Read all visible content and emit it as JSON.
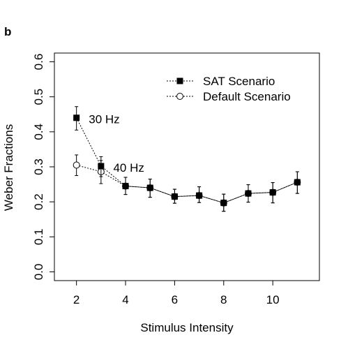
{
  "panel_label": "b",
  "chart_data": {
    "type": "line",
    "title": "",
    "xlabel": "Stimulus Intensity",
    "ylabel": "Weber Fractions",
    "xlim": [
      1.1,
      11.9
    ],
    "ylim": [
      -0.025,
      0.625
    ],
    "xticks": [
      2,
      4,
      6,
      8,
      10
    ],
    "yticks": [
      0.0,
      0.1,
      0.2,
      0.3,
      0.4,
      0.5,
      0.6
    ],
    "ytick_labels": [
      "0.0",
      "0.1",
      "0.2",
      "0.3",
      "0.4",
      "0.5",
      "0.6"
    ],
    "grid": false,
    "legend_position": "top-right",
    "series": [
      {
        "name": "SAT Scenario",
        "marker": "filled-square",
        "x": [
          2,
          3,
          4,
          5,
          6,
          7,
          8,
          9,
          10,
          11
        ],
        "y": [
          0.44,
          0.302,
          0.245,
          0.24,
          0.215,
          0.218,
          0.197,
          0.224,
          0.227,
          0.256
        ],
        "err_low": [
          0.405,
          0.272,
          0.221,
          0.213,
          0.196,
          0.198,
          0.173,
          0.199,
          0.197,
          0.224
        ],
        "err_high": [
          0.472,
          0.329,
          0.27,
          0.265,
          0.236,
          0.243,
          0.222,
          0.249,
          0.255,
          0.286
        ]
      },
      {
        "name": "Default Scenario",
        "marker": "open-circle",
        "x": [
          2,
          3,
          4,
          5,
          6,
          7,
          8,
          9,
          10,
          11
        ],
        "y": [
          0.305,
          0.286,
          0.245,
          0.24,
          0.215,
          0.218,
          0.197,
          0.224,
          0.227,
          0.256
        ],
        "err_low": [
          0.275,
          0.252,
          0.221,
          0.213,
          0.196,
          0.198,
          0.173,
          0.199,
          0.197,
          0.224
        ],
        "err_high": [
          0.334,
          0.318,
          0.27,
          0.265,
          0.236,
          0.243,
          0.222,
          0.249,
          0.255,
          0.286
        ]
      }
    ],
    "annotations": [
      {
        "text": "30 Hz",
        "x": 2.5,
        "y": 0.437
      },
      {
        "text": "40 Hz",
        "x": 3.5,
        "y": 0.298
      }
    ]
  }
}
